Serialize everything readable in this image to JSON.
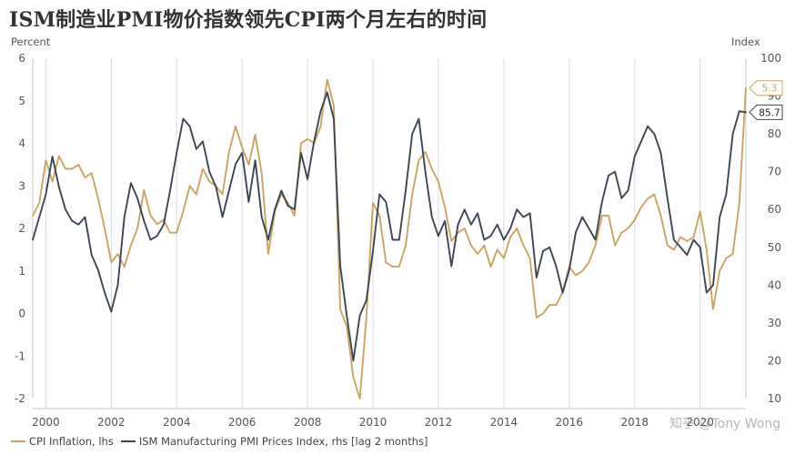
{
  "title": "ISM制造业PMI物价指数领先CPI两个月左右的时间",
  "watermark": "知乎 @Tony Wong",
  "legend": {
    "cpi_label": "CPI Inflation, lhs",
    "ism_label": "ISM Manufacturing PMI Prices Index, rhs [lag 2 months]"
  },
  "chart_data": {
    "type": "line",
    "title": "ISM制造业PMI物价指数领先CPI两个月左右的时间",
    "ylabel_left": "Percent",
    "ylabel_right": "Index",
    "ylim_left": [
      -2,
      6
    ],
    "ylim_right": [
      10,
      100
    ],
    "yticks_left": [
      "-2",
      "-1",
      "0",
      "1",
      "2",
      "3",
      "4",
      "5",
      "6"
    ],
    "yticks_right": [
      "10",
      "20",
      "30",
      "40",
      "50",
      "60",
      "70",
      "80",
      "90",
      "100"
    ],
    "xlim": [
      1999.6,
      2021.4
    ],
    "xticks": [
      "2000",
      "2002",
      "2004",
      "2006",
      "2008",
      "2010",
      "2012",
      "2014",
      "2016",
      "2018",
      "2020"
    ],
    "grid": "vertical",
    "legend_position": "bottom",
    "colors": {
      "cpi": "#c9a560",
      "ism": "#3d4655"
    },
    "end_labels": {
      "cpi": "5.3",
      "ism": "85.7"
    },
    "series": [
      {
        "name": "CPI Inflation, lhs",
        "axis": "left",
        "x": [
          1999.6,
          1999.8,
          2000.0,
          2000.2,
          2000.4,
          2000.6,
          2000.8,
          2001.0,
          2001.2,
          2001.4,
          2001.6,
          2001.8,
          2002.0,
          2002.2,
          2002.4,
          2002.6,
          2002.8,
          2003.0,
          2003.2,
          2003.4,
          2003.6,
          2003.8,
          2004.0,
          2004.2,
          2004.4,
          2004.6,
          2004.8,
          2005.0,
          2005.2,
          2005.4,
          2005.6,
          2005.8,
          2006.0,
          2006.2,
          2006.4,
          2006.6,
          2006.8,
          2007.0,
          2007.2,
          2007.4,
          2007.6,
          2007.8,
          2008.0,
          2008.2,
          2008.4,
          2008.6,
          2008.8,
          2009.0,
          2009.2,
          2009.4,
          2009.6,
          2009.8,
          2010.0,
          2010.2,
          2010.4,
          2010.6,
          2010.8,
          2011.0,
          2011.2,
          2011.4,
          2011.6,
          2011.8,
          2012.0,
          2012.2,
          2012.4,
          2012.6,
          2012.8,
          2013.0,
          2013.2,
          2013.4,
          2013.6,
          2013.8,
          2014.0,
          2014.2,
          2014.4,
          2014.6,
          2014.8,
          2015.0,
          2015.2,
          2015.4,
          2015.6,
          2015.8,
          2016.0,
          2016.2,
          2016.4,
          2016.6,
          2016.8,
          2017.0,
          2017.2,
          2017.4,
          2017.6,
          2017.8,
          2018.0,
          2018.2,
          2018.4,
          2018.6,
          2018.8,
          2019.0,
          2019.2,
          2019.4,
          2019.6,
          2019.8,
          2020.0,
          2020.2,
          2020.4,
          2020.6,
          2020.8,
          2021.0,
          2021.2,
          2021.4
        ],
        "values": [
          2.3,
          2.6,
          3.6,
          3.1,
          3.7,
          3.4,
          3.4,
          3.5,
          3.2,
          3.3,
          2.7,
          2.0,
          1.2,
          1.4,
          1.1,
          1.6,
          2.0,
          2.9,
          2.3,
          2.1,
          2.2,
          1.9,
          1.9,
          2.4,
          3.0,
          2.8,
          3.4,
          3.1,
          3.0,
          2.8,
          3.8,
          4.4,
          3.9,
          3.5,
          4.2,
          3.3,
          1.4,
          2.4,
          2.8,
          2.6,
          2.3,
          4.0,
          4.1,
          4.0,
          4.4,
          5.5,
          4.9,
          0.1,
          -0.3,
          -1.5,
          -2.0,
          -0.1,
          2.6,
          2.3,
          1.2,
          1.1,
          1.1,
          1.6,
          2.8,
          3.6,
          3.8,
          3.4,
          3.1,
          2.5,
          1.7,
          1.9,
          2.0,
          1.6,
          1.4,
          1.6,
          1.1,
          1.5,
          1.3,
          1.8,
          2.0,
          1.6,
          1.3,
          -0.1,
          0.0,
          0.2,
          0.2,
          0.5,
          1.1,
          0.9,
          1.0,
          1.2,
          1.6,
          2.3,
          2.3,
          1.6,
          1.9,
          2.0,
          2.2,
          2.5,
          2.7,
          2.8,
          2.3,
          1.6,
          1.5,
          1.8,
          1.7,
          1.8,
          2.4,
          1.5,
          0.1,
          1.0,
          1.3,
          1.4,
          2.6,
          5.3
        ]
      },
      {
        "name": "ISM Manufacturing PMI Prices Index, rhs [lag 2 months]",
        "axis": "right",
        "x": [
          1999.6,
          1999.8,
          2000.0,
          2000.2,
          2000.4,
          2000.6,
          2000.8,
          2001.0,
          2001.2,
          2001.4,
          2001.6,
          2001.8,
          2002.0,
          2002.2,
          2002.4,
          2002.6,
          2002.8,
          2003.0,
          2003.2,
          2003.4,
          2003.6,
          2003.8,
          2004.0,
          2004.2,
          2004.4,
          2004.6,
          2004.8,
          2005.0,
          2005.2,
          2005.4,
          2005.6,
          2005.8,
          2006.0,
          2006.2,
          2006.4,
          2006.6,
          2006.8,
          2007.0,
          2007.2,
          2007.4,
          2007.6,
          2007.8,
          2008.0,
          2008.2,
          2008.4,
          2008.6,
          2008.8,
          2009.0,
          2009.2,
          2009.4,
          2009.6,
          2009.8,
          2010.0,
          2010.2,
          2010.4,
          2010.6,
          2010.8,
          2011.0,
          2011.2,
          2011.4,
          2011.6,
          2011.8,
          2012.0,
          2012.2,
          2012.4,
          2012.6,
          2012.8,
          2013.0,
          2013.2,
          2013.4,
          2013.6,
          2013.8,
          2014.0,
          2014.2,
          2014.4,
          2014.6,
          2014.8,
          2015.0,
          2015.2,
          2015.4,
          2015.6,
          2015.8,
          2016.0,
          2016.2,
          2016.4,
          2016.6,
          2016.8,
          2017.0,
          2017.2,
          2017.4,
          2017.6,
          2017.8,
          2018.0,
          2018.2,
          2018.4,
          2018.6,
          2018.8,
          2019.0,
          2019.2,
          2019.4,
          2019.6,
          2019.8,
          2020.0,
          2020.2,
          2020.4,
          2020.6,
          2020.8,
          2021.0,
          2021.2,
          2021.4
        ],
        "values": [
          52,
          58,
          64,
          74,
          66,
          60,
          57,
          56,
          58,
          48,
          44,
          38,
          33,
          40,
          58,
          67,
          63,
          57,
          52,
          53,
          56,
          65,
          75,
          84,
          82,
          76,
          78,
          70,
          66,
          58,
          65,
          72,
          75,
          62,
          73,
          58,
          52,
          60,
          65,
          61,
          60,
          75,
          68,
          78,
          86,
          91,
          84,
          45,
          32,
          20,
          32,
          36,
          49,
          64,
          62,
          52,
          52,
          65,
          80,
          84,
          70,
          58,
          53,
          57,
          45,
          56,
          60,
          56,
          59,
          52,
          53,
          56,
          52,
          55,
          60,
          58,
          59,
          42,
          49,
          50,
          45,
          38,
          44,
          54,
          58,
          55,
          52,
          62,
          69,
          70,
          63,
          65,
          74,
          78,
          82,
          80,
          75,
          63,
          52,
          50,
          48,
          52,
          50,
          38,
          40,
          58,
          64,
          80,
          86,
          85.7
        ]
      }
    ]
  }
}
